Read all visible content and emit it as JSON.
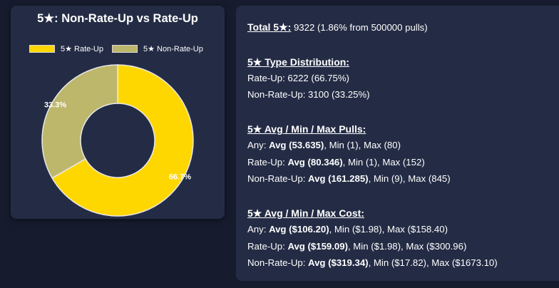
{
  "chart_data": {
    "type": "pie",
    "title": "5★: Non-Rate-Up vs Rate-Up",
    "legend": [
      "5★ Rate-Up",
      "5★ Non-Rate-Up"
    ],
    "legend_position": "top",
    "values": [
      66.7,
      33.3
    ],
    "data_labels": [
      "66.7%",
      "33.3%"
    ],
    "colors": [
      "#ffd700",
      "#bdb76b"
    ]
  },
  "stats": {
    "total_label": "Total 5★:",
    "total_value": " 9322 (1.86% from 500000 pulls)",
    "type_heading": "5★ Type Distribution:",
    "rate_up_line": "Rate-Up: 6222 (66.75%)",
    "non_rate_up_line": "Non-Rate-Up: 3100 (33.25%)",
    "pulls_heading": "5★ Avg / Min / Max Pulls:",
    "pulls": [
      {
        "label": "Any: ",
        "avg": "Avg (53.635)",
        "rest": ", Min (1), Max (80)"
      },
      {
        "label": "Rate-Up: ",
        "avg": "Avg (80.346)",
        "rest": ", Min (1), Max (152)"
      },
      {
        "label": "Non-Rate-Up: ",
        "avg": "Avg (161.285)",
        "rest": ", Min (9), Max (845)"
      }
    ],
    "cost_heading": "5★ Avg / Min / Max Cost:",
    "cost": [
      {
        "label": "Any: ",
        "avg": "Avg ($106.20)",
        "rest": ", Min ($1.98), Max ($158.40)"
      },
      {
        "label": "Rate-Up: ",
        "avg": "Avg ($159.09)",
        "rest": ", Min ($1.98), Max ($300.96)"
      },
      {
        "label": "Non-Rate-Up: ",
        "avg": "Avg ($319.34)",
        "rest": ", Min ($17.82), Max ($1673.10)"
      }
    ]
  }
}
